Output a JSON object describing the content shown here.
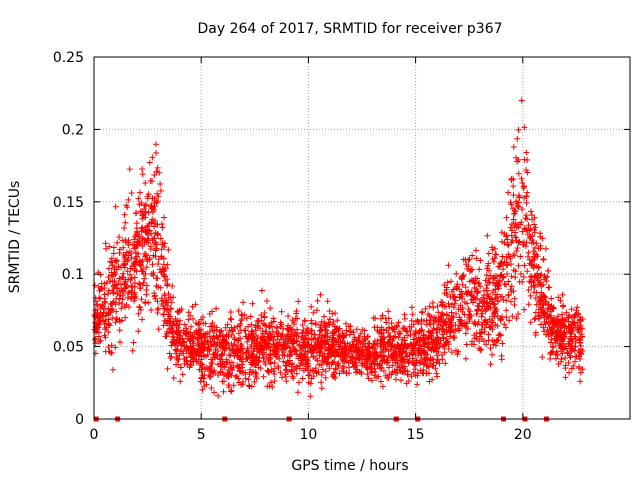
{
  "chart_data": {
    "type": "scatter",
    "title": "Day 264 of 2017, SRMTID for receiver p367",
    "xlabel": "GPS time / hours",
    "ylabel": "SRMTID / TECUs",
    "xlim": [
      0,
      25
    ],
    "ylim": [
      0,
      0.25
    ],
    "xticks": [
      0,
      5,
      10,
      15,
      20
    ],
    "yticks": [
      0,
      0.05,
      0.1,
      0.15,
      0.2,
      0.25
    ],
    "xtick_labels": [
      "0",
      "5",
      "10",
      "15",
      "20"
    ],
    "ytick_labels": [
      "0",
      "0.05",
      "0.1",
      "0.15",
      "0.2",
      "0.25"
    ],
    "grid": true,
    "marker": "+",
    "color": "#ff0000",
    "baseline_markers_x": [
      0.1,
      1.1,
      6.1,
      9.1,
      14.1,
      15.1,
      19.1,
      20.1,
      21.1
    ],
    "envelope": {
      "x": [
        0.0,
        0.3,
        0.6,
        1.0,
        1.3,
        1.6,
        2.0,
        2.3,
        2.6,
        2.9,
        3.1,
        3.4,
        3.8,
        4.2,
        5.0,
        6.0,
        7.0,
        8.0,
        9.0,
        10.0,
        11.0,
        12.0,
        13.0,
        14.0,
        15.0,
        16.0,
        16.5,
        17.0,
        17.5,
        18.0,
        18.5,
        19.0,
        19.3,
        19.6,
        19.9,
        20.1,
        20.4,
        20.8,
        21.1,
        21.4,
        22.0,
        22.6,
        22.8
      ],
      "mean": [
        0.065,
        0.07,
        0.08,
        0.09,
        0.095,
        0.1,
        0.11,
        0.12,
        0.13,
        0.14,
        0.12,
        0.08,
        0.06,
        0.05,
        0.048,
        0.045,
        0.05,
        0.052,
        0.048,
        0.048,
        0.05,
        0.045,
        0.045,
        0.048,
        0.048,
        0.055,
        0.065,
        0.075,
        0.085,
        0.075,
        0.08,
        0.085,
        0.1,
        0.12,
        0.15,
        0.14,
        0.11,
        0.095,
        0.08,
        0.06,
        0.058,
        0.055,
        0.05
      ],
      "spread": [
        0.02,
        0.025,
        0.03,
        0.035,
        0.035,
        0.04,
        0.04,
        0.04,
        0.045,
        0.05,
        0.04,
        0.025,
        0.02,
        0.018,
        0.018,
        0.02,
        0.022,
        0.02,
        0.018,
        0.02,
        0.02,
        0.015,
        0.015,
        0.018,
        0.018,
        0.02,
        0.025,
        0.03,
        0.03,
        0.025,
        0.03,
        0.035,
        0.04,
        0.05,
        0.06,
        0.05,
        0.035,
        0.03,
        0.025,
        0.02,
        0.018,
        0.018,
        0.015
      ]
    },
    "point_count": 3200,
    "x_range_of_points": [
      0.0,
      22.8
    ]
  }
}
